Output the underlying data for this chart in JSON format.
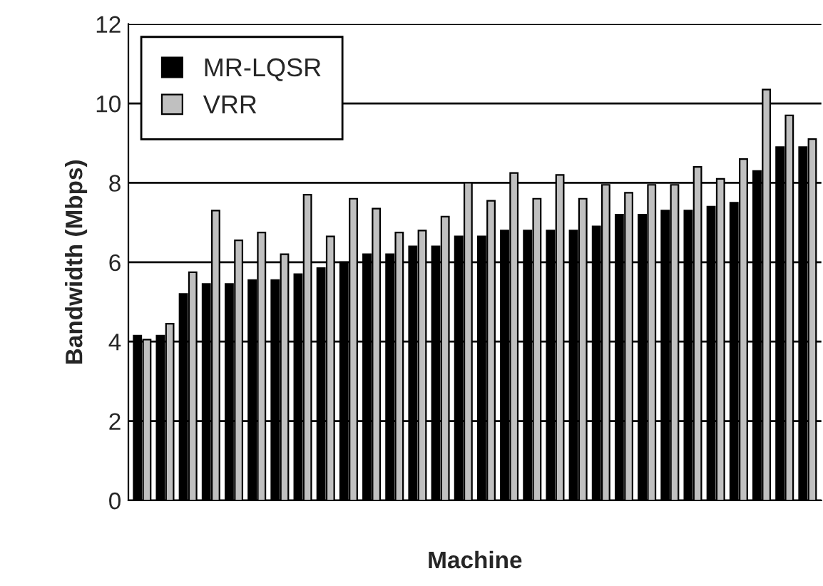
{
  "chart_data": {
    "type": "bar",
    "xlabel": "Machine",
    "ylabel": "Bandwidth (Mbps)",
    "categories": [
      null,
      null,
      null,
      null,
      null,
      null,
      null,
      null,
      null,
      null,
      null,
      null,
      null,
      null,
      null,
      null,
      null,
      null,
      null,
      null,
      null,
      null,
      null,
      null,
      null,
      null,
      null,
      null,
      null,
      null
    ],
    "series": [
      {
        "name": "MR-LQSR",
        "color": "#000000",
        "values": [
          4.15,
          4.15,
          5.2,
          5.45,
          5.45,
          5.55,
          5.55,
          5.7,
          5.85,
          6.0,
          6.2,
          6.2,
          6.4,
          6.4,
          6.65,
          6.65,
          6.8,
          6.8,
          6.8,
          6.8,
          6.9,
          7.2,
          7.2,
          7.3,
          7.3,
          7.4,
          7.5,
          8.3,
          8.9,
          8.9
        ]
      },
      {
        "name": "VRR",
        "color": "#c0c0c0",
        "values": [
          4.05,
          4.45,
          5.75,
          7.3,
          6.55,
          6.75,
          6.2,
          7.7,
          6.65,
          7.6,
          7.35,
          6.75,
          6.8,
          7.15,
          8.0,
          7.55,
          8.25,
          7.6,
          8.2,
          7.6,
          7.95,
          7.75,
          7.95,
          7.95,
          8.4,
          8.1,
          8.6,
          10.35,
          9.7,
          9.1
        ]
      }
    ],
    "ylim": [
      0,
      12
    ],
    "yticks": [
      0,
      2,
      4,
      6,
      8,
      10,
      12
    ],
    "grid": "y",
    "legend": "top left"
  }
}
